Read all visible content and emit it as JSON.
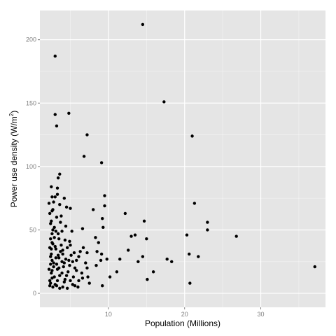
{
  "chart_data": {
    "type": "scatter",
    "title": "",
    "xlabel": "Population (Millions)",
    "ylabel_main": "Power use density (W/m",
    "ylabel_sup": "2",
    "ylabel_close": ")",
    "xlim": [
      1.0,
      38.5
    ],
    "ylim": [
      -11,
      223
    ],
    "x_ticks": [
      10,
      20,
      30
    ],
    "y_ticks": [
      0,
      50,
      100,
      150,
      200
    ],
    "grid": true,
    "panel_color": "#e5e5e5",
    "grid_color": "#ffffff",
    "point_color": "#000000",
    "points": [
      [
        14.5,
        212
      ],
      [
        3.0,
        187
      ],
      [
        3.0,
        141
      ],
      [
        4.8,
        142
      ],
      [
        3.2,
        132
      ],
      [
        17.3,
        151
      ],
      [
        7.2,
        125
      ],
      [
        21.0,
        124
      ],
      [
        6.8,
        108
      ],
      [
        9.1,
        103
      ],
      [
        3.6,
        94
      ],
      [
        3.4,
        91
      ],
      [
        2.5,
        84
      ],
      [
        3.3,
        83
      ],
      [
        9.5,
        77
      ],
      [
        2.6,
        76
      ],
      [
        3.0,
        76
      ],
      [
        4.2,
        75
      ],
      [
        21.3,
        71
      ],
      [
        2.8,
        72
      ],
      [
        2.2,
        71
      ],
      [
        3.6,
        70
      ],
      [
        9.5,
        69
      ],
      [
        4.5,
        68
      ],
      [
        5.0,
        67
      ],
      [
        2.7,
        66
      ],
      [
        8.0,
        66
      ],
      [
        12.2,
        63
      ],
      [
        2.3,
        63
      ],
      [
        3.2,
        60
      ],
      [
        9.2,
        59
      ],
      [
        14.7,
        57
      ],
      [
        23.0,
        56
      ],
      [
        3.7,
        56
      ],
      [
        2.4,
        55
      ],
      [
        4.4,
        53
      ],
      [
        2.9,
        52
      ],
      [
        9.3,
        52
      ],
      [
        6.6,
        51
      ],
      [
        23.0,
        50
      ],
      [
        3.1,
        49
      ],
      [
        3.9,
        49
      ],
      [
        5.2,
        49
      ],
      [
        2.6,
        47
      ],
      [
        13.5,
        46
      ],
      [
        13.0,
        45
      ],
      [
        20.3,
        46
      ],
      [
        26.8,
        45
      ],
      [
        8.3,
        44
      ],
      [
        15.0,
        43
      ],
      [
        2.4,
        43
      ],
      [
        3.5,
        43
      ],
      [
        4.3,
        42
      ],
      [
        8.7,
        40
      ],
      [
        2.6,
        40
      ],
      [
        5.0,
        38
      ],
      [
        3.0,
        37
      ],
      [
        6.7,
        36
      ],
      [
        2.3,
        36
      ],
      [
        12.6,
        34
      ],
      [
        4.0,
        34
      ],
      [
        8.5,
        33
      ],
      [
        7.2,
        32
      ],
      [
        5.5,
        32
      ],
      [
        2.5,
        31
      ],
      [
        9.1,
        31
      ],
      [
        20.6,
        31
      ],
      [
        21.8,
        29
      ],
      [
        14.5,
        29
      ],
      [
        6.1,
        29
      ],
      [
        3.5,
        28
      ],
      [
        11.5,
        27
      ],
      [
        17.7,
        27
      ],
      [
        9.0,
        26
      ],
      [
        2.6,
        26
      ],
      [
        9.8,
        27
      ],
      [
        13.9,
        25
      ],
      [
        18.3,
        25
      ],
      [
        5.3,
        25
      ],
      [
        4.2,
        24
      ],
      [
        3.2,
        23
      ],
      [
        2.4,
        23
      ],
      [
        4.9,
        22
      ],
      [
        2.8,
        21
      ],
      [
        37.1,
        21
      ],
      [
        7.2,
        20
      ],
      [
        3.5,
        20
      ],
      [
        2.2,
        19
      ],
      [
        5.8,
        18
      ],
      [
        11.1,
        17
      ],
      [
        15.9,
        17
      ],
      [
        2.5,
        16
      ],
      [
        3.9,
        16
      ],
      [
        4.5,
        14
      ],
      [
        10.2,
        13
      ],
      [
        7.3,
        13
      ],
      [
        6.6,
        12
      ],
      [
        2.6,
        12
      ],
      [
        15.1,
        11
      ],
      [
        3.3,
        10
      ],
      [
        5.0,
        10
      ],
      [
        20.7,
        8
      ],
      [
        4.2,
        9
      ],
      [
        2.4,
        8
      ],
      [
        9.2,
        6
      ],
      [
        3.0,
        7
      ],
      [
        5.6,
        6
      ],
      [
        2.3,
        6
      ],
      [
        4.0,
        5
      ],
      [
        3.6,
        4
      ],
      [
        2.7,
        5
      ],
      [
        4.6,
        4
      ],
      [
        6.0,
        5
      ],
      [
        3.2,
        6
      ],
      [
        5.3,
        7
      ],
      [
        2.6,
        18
      ],
      [
        3.1,
        28
      ],
      [
        4.0,
        31
      ],
      [
        2.5,
        35
      ],
      [
        3.8,
        38
      ],
      [
        2.9,
        44
      ],
      [
        3.4,
        47
      ],
      [
        2.7,
        50
      ],
      [
        4.1,
        21
      ],
      [
        5.8,
        26
      ],
      [
        6.3,
        33
      ],
      [
        4.7,
        17
      ],
      [
        3.6,
        14
      ],
      [
        2.8,
        24
      ],
      [
        5.1,
        30
      ],
      [
        3.3,
        19
      ],
      [
        4.4,
        27
      ],
      [
        2.4,
        29
      ],
      [
        6.5,
        16
      ],
      [
        7.0,
        24
      ],
      [
        3.7,
        33
      ],
      [
        2.9,
        13
      ],
      [
        4.3,
        11
      ],
      [
        5.6,
        20
      ],
      [
        3.1,
        35
      ],
      [
        2.5,
        57
      ],
      [
        3.8,
        61
      ],
      [
        4.9,
        41
      ],
      [
        2.6,
        65
      ],
      [
        3.3,
        78
      ],
      [
        6.1,
        10
      ],
      [
        7.5,
        8
      ],
      [
        8.4,
        22
      ],
      [
        3.9,
        25
      ],
      [
        4.6,
        36
      ],
      [
        5.4,
        13
      ],
      [
        2.3,
        10
      ],
      [
        3.4,
        30
      ],
      [
        4.8,
        26
      ],
      [
        2.7,
        39
      ]
    ]
  }
}
